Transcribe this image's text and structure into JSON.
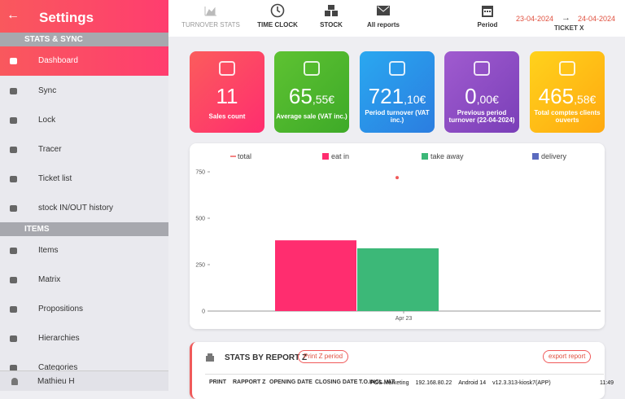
{
  "sidebar": {
    "title": "Settings",
    "sections": [
      {
        "title": "STATS & SYNC",
        "items": [
          "Dashboard",
          "Sync",
          "Lock",
          "Tracer",
          "Ticket list",
          "stock IN/OUT history"
        ]
      },
      {
        "title": "ITEMS",
        "items": [
          "Items",
          "Matrix",
          "Propositions",
          "Hierarchies",
          "Categories"
        ]
      }
    ],
    "user": "Mathieu H"
  },
  "topbar": {
    "tabs": [
      "TURNOVER STATS",
      "TIME CLOCK",
      "STOCK",
      "All reports"
    ],
    "period": "Period",
    "date_from": "23-04-2024",
    "date_to": "24-04-2024",
    "ticket": "TICKET X"
  },
  "cards": [
    {
      "big": "11",
      "small": "",
      "label": "Sales count"
    },
    {
      "big": "65",
      "small": ",55€",
      "label": "Average sale (VAT inc.)"
    },
    {
      "big": "721",
      "small": ",10€",
      "label": "Period turnover (VAT inc.)"
    },
    {
      "big": "0",
      "small": ",00€",
      "label": "Previous period turnover (22-04-2024)"
    },
    {
      "big": "465",
      "small": ",58€",
      "label": "Total comptes clients ouverts"
    }
  ],
  "chart": {
    "type": "bar",
    "categories": [
      "Apr 23"
    ],
    "series": [
      {
        "name": "total",
        "color": "#f05a5a",
        "values": [
          719
        ]
      },
      {
        "name": "eat in",
        "color": "#ff2d6f",
        "values": [
          381
        ]
      },
      {
        "name": "take away",
        "color": "#3cb878",
        "values": [
          338
        ]
      },
      {
        "name": "delivery",
        "color": "#5b6bbf",
        "values": [
          null
        ]
      }
    ],
    "ylim": [
      0,
      750
    ],
    "yticks": [
      0,
      250,
      500,
      750
    ]
  },
  "report": {
    "title": "STATS BY REPORT Z",
    "print_button": "Print Z period",
    "export_button": "export report",
    "columns": [
      "PRINT",
      "RAPPORT Z",
      "OPENING DATE",
      "CLOSING DATE",
      "T.O.INCL.VAT"
    ]
  },
  "status_bar": [
    "POS Marketing",
    "192.168.80.22",
    "Android 14",
    "v12.3.313-kiosk7(APP)",
    "11:49"
  ]
}
